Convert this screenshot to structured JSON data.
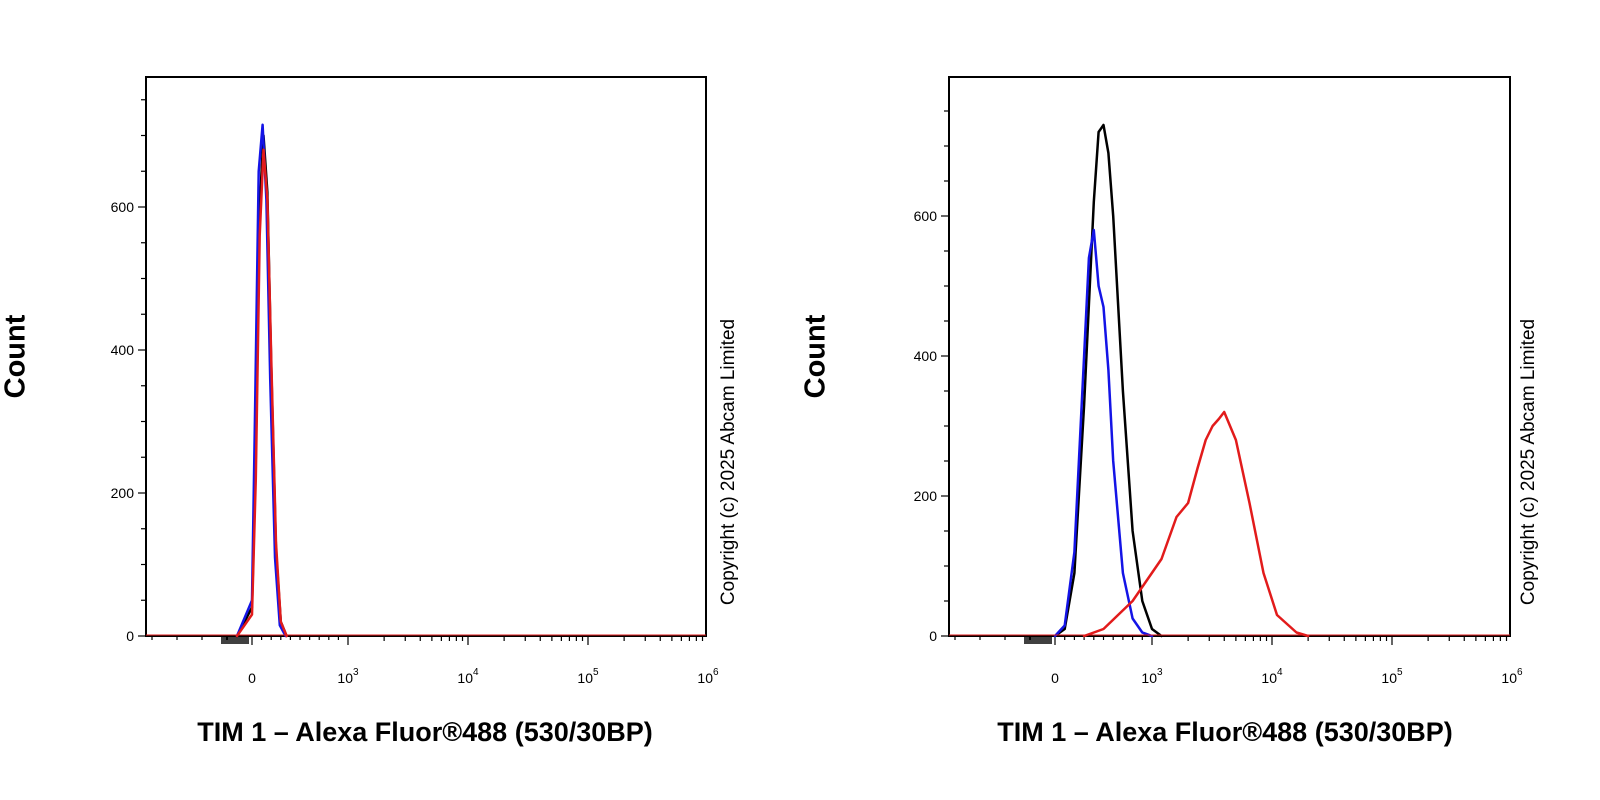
{
  "colors": {
    "black": "#000000",
    "blue": "#1414e6",
    "red": "#e21b1b"
  },
  "chart_data": [
    {
      "type": "line",
      "title": "",
      "xlabel": "TIM 1 – Alexa Fluor®488 (530/30BP)",
      "ylabel": "Count",
      "x_scale": "biexponential",
      "x_tick_labels": [
        "0",
        "10^3",
        "10^4",
        "10^5",
        "10^6"
      ],
      "y_tick_labels": [
        "0",
        "200",
        "400",
        "600"
      ],
      "ylim": [
        0,
        780
      ],
      "copyright": "Copyright (c) 2025 Abcam Limited",
      "series": [
        {
          "color": "black",
          "x": [
            -60,
            0,
            40,
            80,
            120,
            160,
            200,
            250,
            300,
            360
          ],
          "y": [
            0,
            40,
            250,
            600,
            700,
            620,
            380,
            120,
            20,
            0
          ]
        },
        {
          "color": "blue",
          "x": [
            -60,
            0,
            30,
            70,
            110,
            150,
            190,
            240,
            290,
            350
          ],
          "y": [
            0,
            50,
            300,
            650,
            715,
            610,
            360,
            110,
            15,
            0
          ]
        },
        {
          "color": "red",
          "x": [
            -60,
            0,
            40,
            80,
            120,
            160,
            200,
            250,
            300,
            360
          ],
          "y": [
            0,
            30,
            220,
            560,
            680,
            610,
            390,
            130,
            20,
            0
          ]
        }
      ]
    },
    {
      "type": "line",
      "title": "",
      "xlabel": "TIM 1 – Alexa Fluor®488 (530/30BP)",
      "ylabel": "Count",
      "x_scale": "biexponential",
      "x_tick_labels": [
        "0",
        "10^3",
        "10^4",
        "10^5",
        "10^6"
      ],
      "y_tick_labels": [
        "0",
        "200",
        "400",
        "600"
      ],
      "ylim": [
        0,
        780
      ],
      "copyright": "Copyright (c) 2025 Abcam Limited",
      "series": [
        {
          "color": "black",
          "x": [
            0,
            100,
            200,
            300,
            400,
            450,
            500,
            550,
            600,
            700,
            800,
            900,
            1000,
            1200
          ],
          "y": [
            0,
            10,
            90,
            330,
            620,
            720,
            730,
            690,
            600,
            350,
            150,
            50,
            10,
            0
          ]
        },
        {
          "color": "blue",
          "x": [
            0,
            100,
            200,
            300,
            350,
            400,
            450,
            500,
            550,
            600,
            700,
            800,
            900,
            1000
          ],
          "y": [
            0,
            15,
            120,
            400,
            540,
            580,
            500,
            470,
            380,
            250,
            90,
            25,
            5,
            0
          ]
        },
        {
          "color": "red",
          "x": [
            300,
            500,
            800,
            1200,
            1600,
            2000,
            2400,
            2800,
            3200,
            3600,
            4000,
            5000,
            6500,
            8500,
            11000,
            16000,
            20000
          ],
          "y": [
            0,
            10,
            50,
            110,
            170,
            190,
            240,
            280,
            300,
            310,
            320,
            280,
            190,
            90,
            30,
            5,
            0
          ]
        }
      ]
    }
  ]
}
